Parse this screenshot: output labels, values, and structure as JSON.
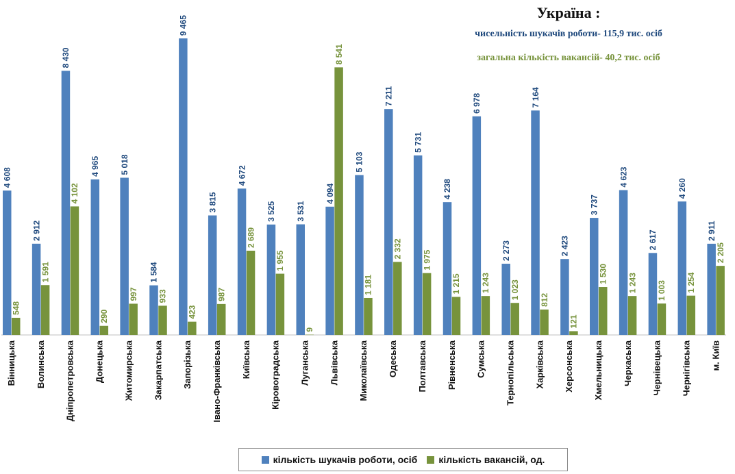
{
  "chart_data": {
    "type": "bar",
    "title": "Україна :",
    "subtitle_lines": [
      "чисельність шукачів роботи- 115,9 тис. осіб",
      "загальна кількість вакансій- 40,2 тис. осіб"
    ],
    "categories": [
      "Вінницька",
      "Волинська",
      "Дніпропетровська",
      "Донецька",
      "Житомирська",
      "Закарпатська",
      "Запорізька",
      "Івано-Франківська",
      "Київська",
      "Кіровоградська",
      "Луганська",
      "Львівська",
      "Миколаївська",
      "Одеська",
      "Полтавська",
      "Рівненська",
      "Сумська",
      "Тернопільська",
      "Харківська",
      "Херсонська",
      "Хмельницька",
      "Черкаська",
      "Чернівецька",
      "Чернігівська",
      "м. Київ"
    ],
    "series": [
      {
        "name": "кількість шукачів роботи, осіб",
        "color": "#4F81BD",
        "label_color": "#1F497D",
        "values": [
          4608,
          2912,
          8430,
          4965,
          5018,
          1584,
          9465,
          3815,
          4672,
          3525,
          3531,
          4094,
          5103,
          7211,
          5731,
          4238,
          6978,
          2273,
          7164,
          2423,
          3737,
          4623,
          2617,
          4260,
          2911
        ],
        "labels": [
          "4 608",
          "2 912",
          "8 430",
          "4 965",
          "5 018",
          "1 584",
          "9 465",
          "3 815",
          "4 672",
          "3 525",
          "3 531",
          "4 094",
          "5 103",
          "7 211",
          "5 731",
          "4 238",
          "6 978",
          "2 273",
          "7 164",
          "2 423",
          "3 737",
          "4 623",
          "2 617",
          "4 260",
          "2 911"
        ]
      },
      {
        "name": "кількість вакансій, од.",
        "color": "#77933C",
        "label_color": "#77933C",
        "values": [
          548,
          1591,
          4102,
          290,
          997,
          933,
          423,
          987,
          2689,
          1955,
          9,
          8541,
          1181,
          2332,
          1975,
          1215,
          1243,
          1023,
          812,
          121,
          1530,
          1243,
          1003,
          1254,
          2205
        ],
        "labels": [
          "548",
          "1 591",
          "4 102",
          "290",
          "997",
          "933",
          "423",
          "987",
          "2 689",
          "1 955",
          "9",
          "8 541",
          "1 181",
          "2 332",
          "1 975",
          "1 215",
          "1 243",
          "1 023",
          "812",
          "121",
          "1 530",
          "1 243",
          "1 003",
          "1 254",
          "2 205"
        ]
      }
    ],
    "ylim": [
      0,
      9500
    ],
    "grid": false,
    "legend_position": "bottom"
  }
}
